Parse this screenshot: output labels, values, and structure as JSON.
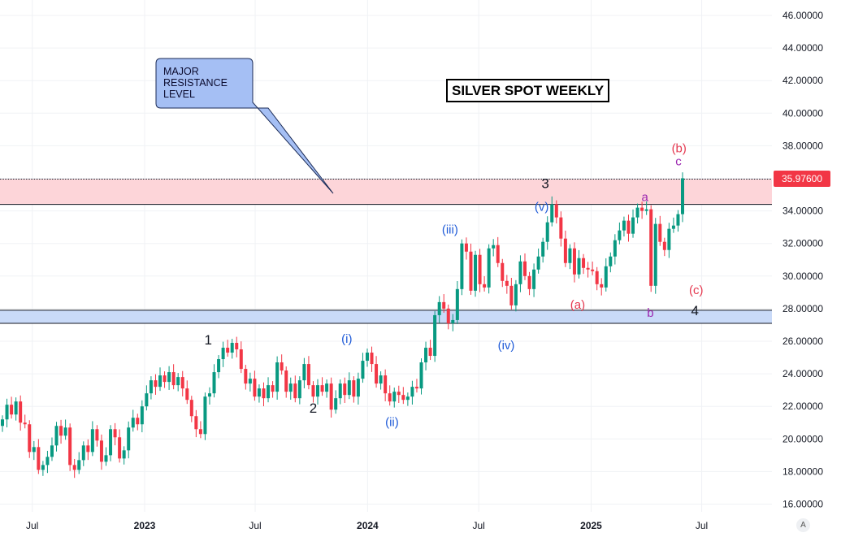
{
  "chart_data": {
    "type": "candlestick",
    "title": "SILVER SPOT WEEKLY",
    "ylim": [
      15,
      47
    ],
    "y_ticks": [
      "46.00000",
      "44.00000",
      "42.00000",
      "40.00000",
      "38.00000",
      "36.00000",
      "34.00000",
      "32.00000",
      "30.00000",
      "28.00000",
      "26.00000",
      "24.00000",
      "22.00000",
      "20.00000",
      "18.00000",
      "16.00000"
    ],
    "x_ticks": [
      {
        "label": "Jul",
        "date": "2022-07-01",
        "bold": false
      },
      {
        "label": "2023",
        "date": "2023-01-01",
        "bold": true
      },
      {
        "label": "Jul",
        "date": "2023-07-01",
        "bold": false
      },
      {
        "label": "2024",
        "date": "2024-01-01",
        "bold": true
      },
      {
        "label": "Jul",
        "date": "2024-07-01",
        "bold": false
      },
      {
        "label": "2025",
        "date": "2025-01-01",
        "bold": true
      },
      {
        "label": "Jul",
        "date": "2025-07-01",
        "bold": false
      }
    ],
    "last_price": "35.97600",
    "last_price_value": 35.976,
    "colors": {
      "up": "#089981",
      "down": "#f23645",
      "grid": "#f0f2f5",
      "price_label": "#f23645"
    },
    "closes": [
      21.2,
      22.1,
      21.5,
      22.3,
      21.0,
      20.9,
      19.2,
      19.5,
      18.1,
      18.4,
      18.9,
      19.6,
      20.8,
      20.2,
      20.7,
      18.4,
      18.1,
      18.7,
      19.6,
      19.2,
      20.6,
      19.9,
      18.6,
      19.0,
      20.6,
      20.1,
      18.8,
      19.3,
      20.7,
      21.3,
      20.9,
      22.0,
      22.8,
      23.6,
      23.2,
      23.9,
      23.5,
      24.1,
      23.3,
      23.8,
      23.1,
      22.4,
      21.4,
      20.6,
      20.3,
      22.6,
      22.8,
      24.1,
      24.9,
      25.6,
      25.3,
      25.9,
      25.5,
      24.3,
      23.4,
      23.7,
      22.6,
      23.1,
      22.5,
      23.3,
      22.9,
      24.7,
      24.2,
      22.9,
      23.4,
      22.5,
      23.6,
      24.6,
      23.3,
      22.6,
      23.3,
      22.9,
      23.4,
      21.8,
      22.5,
      23.4,
      22.7,
      23.6,
      22.6,
      23.7,
      24.8,
      25.3,
      24.6,
      23.4,
      23.9,
      22.8,
      22.3,
      22.9,
      22.7,
      22.4,
      22.6,
      23.2,
      23.1,
      24.7,
      25.6,
      25.1,
      27.6,
      28.4,
      28.0,
      27.1,
      27.3,
      29.2,
      32.0,
      31.5,
      29.1,
      31.3,
      29.5,
      29.3,
      31.7,
      31.9,
      30.8,
      29.7,
      29.4,
      28.2,
      29.5,
      30.9,
      30.0,
      29.2,
      30.4,
      31.2,
      32.1,
      33.3,
      34.4,
      33.6,
      32.3,
      30.8,
      31.7,
      30.1,
      31.1,
      30.5,
      30.4,
      30.3,
      29.5,
      29.3,
      30.6,
      31.2,
      32.2,
      32.8,
      33.4,
      32.6,
      33.6,
      34.2,
      34.0,
      34.1,
      29.4,
      33.2,
      32.1,
      31.6,
      32.9,
      33.1,
      33.8,
      36.0
    ]
  },
  "annotations": {
    "callout": "MAJOR\nRESISTANCE\nLEVEL",
    "waves": [
      {
        "text": "1",
        "date": "2023-04-15",
        "price": 25.8,
        "color": "#131722",
        "size": 17
      },
      {
        "text": "2",
        "date": "2023-10-04",
        "price": 21.6,
        "color": "#131722",
        "size": 17
      },
      {
        "text": "3",
        "date": "2024-10-18",
        "price": 35.4,
        "color": "#131722",
        "size": 17
      },
      {
        "text": "4",
        "date": "2025-06-20",
        "price": 27.6,
        "color": "#131722",
        "size": 17
      },
      {
        "text": "(i)",
        "date": "2023-11-28",
        "price": 25.9,
        "color": "#1f5bd8",
        "size": 15
      },
      {
        "text": "(ii)",
        "date": "2024-02-10",
        "price": 20.8,
        "color": "#1f5bd8",
        "size": 15
      },
      {
        "text": "(iii)",
        "date": "2024-05-15",
        "price": 32.6,
        "color": "#1f5bd8",
        "size": 15
      },
      {
        "text": "(iv)",
        "date": "2024-08-15",
        "price": 25.5,
        "color": "#1f5bd8",
        "size": 15
      },
      {
        "text": "(v)",
        "date": "2024-10-12",
        "price": 34.0,
        "color": "#1f5bd8",
        "size": 15
      },
      {
        "text": "(a)",
        "date": "2024-12-10",
        "price": 28.0,
        "color": "#e53950",
        "size": 15
      },
      {
        "text": "(b)",
        "date": "2025-05-25",
        "price": 37.6,
        "color": "#e53950",
        "size": 15
      },
      {
        "text": "(c)",
        "date": "2025-06-22",
        "price": 28.9,
        "color": "#e53950",
        "size": 15
      },
      {
        "text": "a",
        "date": "2025-03-30",
        "price": 34.6,
        "color": "#9c27b0",
        "size": 15
      },
      {
        "text": "b",
        "date": "2025-04-08",
        "price": 27.5,
        "color": "#9c27b0",
        "size": 15
      },
      {
        "text": "c",
        "date": "2025-05-24",
        "price": 36.8,
        "color": "#9c27b0",
        "size": 15
      }
    ]
  },
  "zones": {
    "resistance": {
      "top": 35.95,
      "bottom": 34.4,
      "fill": "#fdd5d9"
    },
    "support": {
      "top": 27.9,
      "bottom": 27.1,
      "fill": "#c9daf8"
    }
  },
  "ui": {
    "scale_button": "A"
  }
}
